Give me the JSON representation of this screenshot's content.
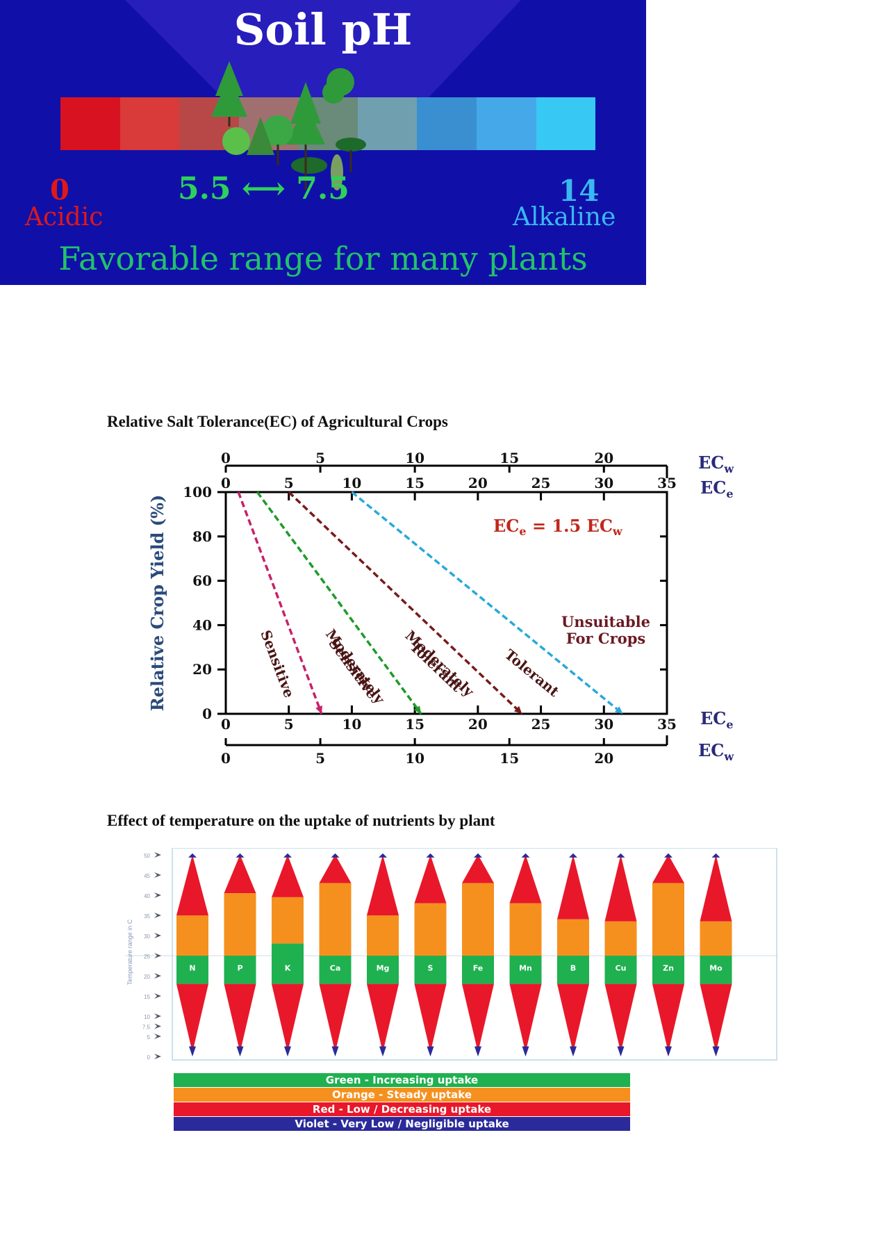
{
  "soil_ph": {
    "title": "Soil pH",
    "scale_min": "0",
    "scale_min_label": "Acidic",
    "favorable_range": "5.5 ⟷ 7.5",
    "scale_max": "14",
    "scale_max_label": "Alkaline",
    "caption": "Favorable range for many plants",
    "colors": {
      "background": "#1010a8",
      "acidic": "#e01818",
      "neutral": "#2fd05a",
      "alkaline": "#3ab8f0"
    },
    "bar_colors": [
      "#d81220",
      "#d93a3a",
      "#b84848",
      "#a07070",
      "#6a8a7a",
      "#70a0b0",
      "#3a8fd0",
      "#45a8e8",
      "#38c8f4"
    ]
  },
  "section_titles": {
    "salt": "Relative Salt Tolerance(EC)  of Agricultural Crops",
    "temperature": "Effect of temperature on the uptake of nutrients by plant"
  },
  "chart_data": [
    {
      "type": "line",
      "ylabel": "Relative Crop Yield (%)",
      "y_ticks": [
        "100",
        "80",
        "60",
        "40",
        "20",
        "0"
      ],
      "ylim": [
        0,
        100
      ],
      "ece_ticks": [
        "0",
        "5",
        "10",
        "15",
        "20",
        "25",
        "30",
        "35"
      ],
      "ecw_ticks": [
        "0",
        "5",
        "10",
        "15",
        "20"
      ],
      "ece_axis_label": "ECe",
      "ecw_axis_label": "ECw",
      "equation": "ECe = 1.5 ECw",
      "region_label": "Unsuitable For Crops",
      "region_label_lines": [
        "Unsuitable",
        "For Crops"
      ],
      "series": [
        {
          "name": "Sensitive",
          "lines": [
            "Sensitive"
          ],
          "color": "#c8206a",
          "x": [
            1,
            7.6
          ],
          "y": [
            100,
            0
          ]
        },
        {
          "name": "Moderately Sensitive",
          "lines": [
            "Moderately",
            "Sensitive"
          ],
          "color": "#1f9a2a",
          "x": [
            2.5,
            15.5
          ],
          "y": [
            100,
            0
          ]
        },
        {
          "name": "Moderately Tolerant",
          "lines": [
            "Moderately",
            "Tolerant"
          ],
          "color": "#7a1a1a",
          "x": [
            5,
            23.5
          ],
          "y": [
            100,
            0
          ]
        },
        {
          "name": "Tolerant",
          "lines": [
            "Tolerant"
          ],
          "color": "#2aa8d8",
          "x": [
            10,
            31.5
          ],
          "y": [
            100,
            0
          ]
        }
      ]
    },
    {
      "type": "bar",
      "ylabel": "Temperature range in C",
      "y_ticks": [
        "50",
        "45",
        "40",
        "35",
        "30",
        "25",
        "20",
        "15",
        "10",
        "7.5",
        "5",
        "0"
      ],
      "categories": [
        "N",
        "P",
        "K",
        "Ca",
        "Mg",
        "S",
        "Fe",
        "Mn",
        "B",
        "Cu",
        "Zn",
        "Mo"
      ],
      "notes": "Per nutrient: lower red taper (decreasing uptake), green band (increasing), orange band (steady), upper red taper; violet tips = negligible",
      "bands": [
        {
          "nutrient": "N",
          "green_top": 25,
          "orange_top": 35,
          "red_top": 49
        },
        {
          "nutrient": "P",
          "green_top": 25,
          "orange_top": 40.5,
          "red_top": 49
        },
        {
          "nutrient": "K",
          "green_top": 28,
          "orange_top": 39.5,
          "red_top": 49
        },
        {
          "nutrient": "Ca",
          "green_top": 25,
          "orange_top": 43,
          "red_top": 49
        },
        {
          "nutrient": "Mg",
          "green_top": 25,
          "orange_top": 35,
          "red_top": 49
        },
        {
          "nutrient": "S",
          "green_top": 25,
          "orange_top": 38,
          "red_top": 49
        },
        {
          "nutrient": "Fe",
          "green_top": 25,
          "orange_top": 43,
          "red_top": 49
        },
        {
          "nutrient": "Mn",
          "green_top": 25,
          "orange_top": 38,
          "red_top": 49
        },
        {
          "nutrient": "B",
          "green_top": 25,
          "orange_top": 34,
          "red_top": 49
        },
        {
          "nutrient": "Cu",
          "green_top": 25,
          "orange_top": 33.5,
          "red_top": 49
        },
        {
          "nutrient": "Zn",
          "green_top": 25,
          "orange_top": 43,
          "red_top": 49
        },
        {
          "nutrient": "Mo",
          "green_top": 25,
          "orange_top": 33.5,
          "red_top": 49
        }
      ],
      "legend": [
        {
          "label": "Green - Increasing uptake",
          "color": "#1fb050"
        },
        {
          "label": "Orange - Steady uptake",
          "color": "#f5901e"
        },
        {
          "label": "Red - Low / Decreasing uptake",
          "color": "#e8182a"
        },
        {
          "label": "Violet - Very Low / Negligible uptake",
          "color": "#2a2a9a"
        }
      ]
    }
  ]
}
